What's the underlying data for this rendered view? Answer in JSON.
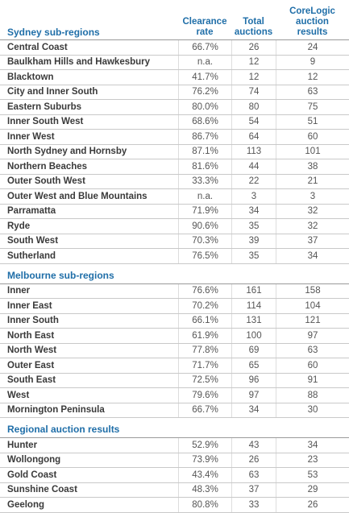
{
  "columns": [
    "Clearance rate",
    "Total auctions",
    "CoreLogic auction results"
  ],
  "sections": [
    {
      "title": "Sydney sub-regions",
      "rows": [
        [
          "Central Coast",
          "66.7%",
          "26",
          "24"
        ],
        [
          "Baulkham Hills and Hawkesbury",
          "n.a.",
          "12",
          "9"
        ],
        [
          "Blacktown",
          "41.7%",
          "12",
          "12"
        ],
        [
          "City and Inner South",
          "76.2%",
          "74",
          "63"
        ],
        [
          "Eastern Suburbs",
          "80.0%",
          "80",
          "75"
        ],
        [
          "Inner South West",
          "68.6%",
          "54",
          "51"
        ],
        [
          "Inner West",
          "86.7%",
          "64",
          "60"
        ],
        [
          "North Sydney and Hornsby",
          "87.1%",
          "113",
          "101"
        ],
        [
          "Northern Beaches",
          "81.6%",
          "44",
          "38"
        ],
        [
          "Outer South West",
          "33.3%",
          "22",
          "21"
        ],
        [
          "Outer West and Blue Mountains",
          "n.a.",
          "3",
          "3"
        ],
        [
          "Parramatta",
          "71.9%",
          "34",
          "32"
        ],
        [
          "Ryde",
          "90.6%",
          "35",
          "32"
        ],
        [
          "South West",
          "70.3%",
          "39",
          "37"
        ],
        [
          "Sutherland",
          "76.5%",
          "35",
          "34"
        ]
      ]
    },
    {
      "title": "Melbourne sub-regions",
      "rows": [
        [
          "Inner",
          "76.6%",
          "161",
          "158"
        ],
        [
          "Inner East",
          "70.2%",
          "114",
          "104"
        ],
        [
          "Inner South",
          "66.1%",
          "131",
          "121"
        ],
        [
          "North East",
          "61.9%",
          "100",
          "97"
        ],
        [
          "North West",
          "77.8%",
          "69",
          "63"
        ],
        [
          "Outer East",
          "71.7%",
          "65",
          "60"
        ],
        [
          "South East",
          "72.5%",
          "96",
          "91"
        ],
        [
          "West",
          "79.6%",
          "97",
          "88"
        ],
        [
          "Mornington Peninsula",
          "66.7%",
          "34",
          "30"
        ]
      ]
    },
    {
      "title": "Regional auction results",
      "rows": [
        [
          "Hunter",
          "52.9%",
          "43",
          "34"
        ],
        [
          "Wollongong",
          "73.9%",
          "26",
          "23"
        ],
        [
          "Gold Coast",
          "43.4%",
          "63",
          "53"
        ],
        [
          "Sunshine Coast",
          "48.3%",
          "37",
          "29"
        ],
        [
          "Geelong",
          "80.8%",
          "33",
          "26"
        ]
      ]
    }
  ]
}
